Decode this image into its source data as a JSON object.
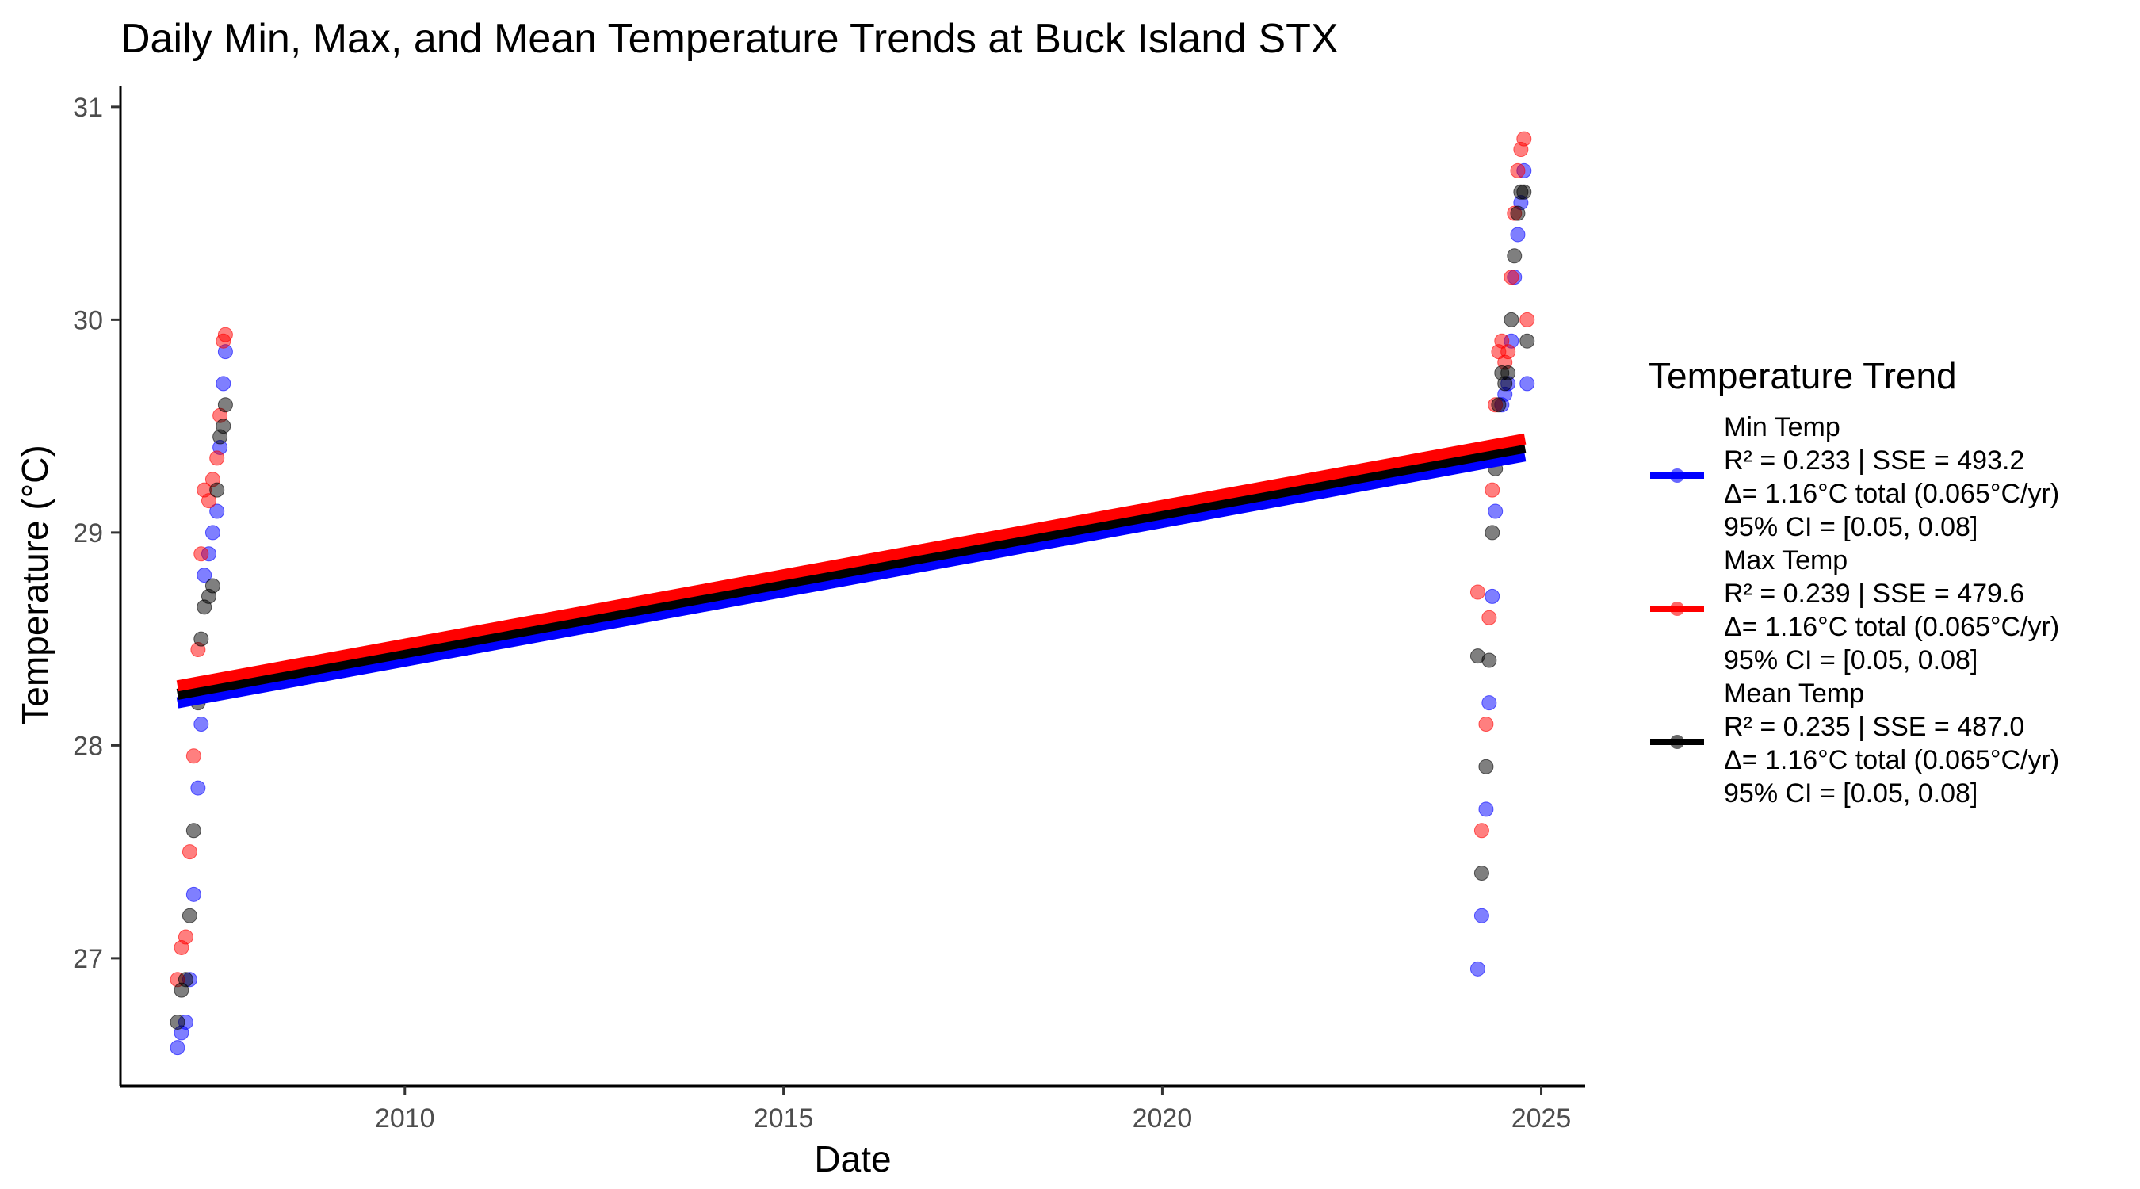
{
  "chart_data": {
    "type": "scatter",
    "title": "Daily Min, Max, and Mean Temperature Trends at Buck Island STX",
    "xlabel": "Date",
    "ylabel": "Temperature (°C)",
    "x_ticks": [
      "2010",
      "2015",
      "2020",
      "2025"
    ],
    "y_ticks": [
      "27",
      "28",
      "29",
      "30",
      "31"
    ],
    "xlim": [
      "2006-04-01",
      "2025-08-01"
    ],
    "ylim": [
      26.4,
      31.1
    ],
    "grid": false,
    "legend": {
      "title": "Temperature Trend",
      "position": "right",
      "entries": [
        {
          "lines": [
            "Min Temp",
            "R² = 0.233 | SSE = 493.2",
            "Δ= 1.16°C total (0.065°C/yr)",
            "95% CI = [0.05, 0.08]"
          ],
          "color": "#0000ff"
        },
        {
          "lines": [
            "Max Temp",
            "R² = 0.239 | SSE = 479.6",
            "Δ= 1.16°C total (0.065°C/yr)",
            "95% CI = [0.05, 0.08]"
          ],
          "color": "#ff0000"
        },
        {
          "lines": [
            "Mean Temp",
            "R² = 0.235 | SSE = 487.0",
            "Δ= 1.16°C total (0.065°C/yr)",
            "95% CI = [0.05, 0.08]"
          ],
          "color": "#000000"
        }
      ]
    },
    "series": [
      {
        "name": "Min Temp",
        "color": "#0000ff",
        "trend": {
          "x": [
            "2007-01-01",
            "2024-10-15"
          ],
          "y": [
            28.2,
            29.36
          ]
        },
        "points": {
          "x": [
            "2007-01-01",
            "2007-01-20",
            "2007-02-10",
            "2007-03-01",
            "2007-03-20",
            "2007-04-10",
            "2007-04-25",
            "2007-05-10",
            "2007-06-01",
            "2007-06-20",
            "2007-07-10",
            "2007-07-25",
            "2007-08-10",
            "2007-08-20",
            "2024-03-01",
            "2024-03-20",
            "2024-04-10",
            "2024-04-25",
            "2024-05-10",
            "2024-05-25",
            "2024-06-10",
            "2024-06-25",
            "2024-07-10",
            "2024-07-25",
            "2024-08-10",
            "2024-08-25",
            "2024-09-10",
            "2024-09-25",
            "2024-10-10",
            "2024-10-25"
          ],
          "y": [
            26.58,
            26.65,
            26.7,
            26.9,
            27.3,
            27.8,
            28.1,
            28.8,
            28.9,
            29.0,
            29.1,
            29.4,
            29.7,
            29.85,
            26.95,
            27.2,
            27.7,
            28.2,
            28.7,
            29.1,
            29.4,
            29.6,
            29.65,
            29.7,
            29.9,
            30.2,
            30.4,
            30.55,
            30.7,
            29.7
          ]
        }
      },
      {
        "name": "Max Temp",
        "color": "#ff0000",
        "trend": {
          "x": [
            "2007-01-01",
            "2024-10-15"
          ],
          "y": [
            28.28,
            29.44
          ]
        },
        "points": {
          "x": [
            "2007-01-01",
            "2007-01-20",
            "2007-02-10",
            "2007-03-01",
            "2007-03-20",
            "2007-04-10",
            "2007-04-25",
            "2007-05-10",
            "2007-06-01",
            "2007-06-20",
            "2007-07-10",
            "2007-07-25",
            "2007-08-10",
            "2007-08-20",
            "2024-03-01",
            "2024-03-20",
            "2024-04-10",
            "2024-04-25",
            "2024-05-10",
            "2024-05-25",
            "2024-06-10",
            "2024-06-25",
            "2024-07-10",
            "2024-07-25",
            "2024-08-10",
            "2024-08-25",
            "2024-09-10",
            "2024-09-25",
            "2024-10-10",
            "2024-10-25"
          ],
          "y": [
            26.9,
            27.05,
            27.1,
            27.5,
            27.95,
            28.45,
            28.9,
            29.2,
            29.15,
            29.25,
            29.35,
            29.55,
            29.9,
            29.93,
            28.72,
            27.6,
            28.1,
            28.6,
            29.2,
            29.6,
            29.85,
            29.9,
            29.8,
            29.85,
            30.2,
            30.5,
            30.7,
            30.8,
            30.85,
            30.0
          ]
        }
      },
      {
        "name": "Mean Temp",
        "color": "#000000",
        "trend": {
          "x": [
            "2007-01-01",
            "2024-10-15"
          ],
          "y": [
            28.24,
            29.4
          ]
        },
        "points": {
          "x": [
            "2007-01-01",
            "2007-01-20",
            "2007-02-10",
            "2007-03-01",
            "2007-03-20",
            "2007-04-10",
            "2007-04-25",
            "2007-05-10",
            "2007-06-01",
            "2007-06-20",
            "2007-07-10",
            "2007-07-25",
            "2007-08-10",
            "2007-08-20",
            "2024-03-01",
            "2024-03-20",
            "2024-04-10",
            "2024-04-25",
            "2024-05-10",
            "2024-05-25",
            "2024-06-10",
            "2024-06-25",
            "2024-07-10",
            "2024-07-25",
            "2024-08-10",
            "2024-08-25",
            "2024-09-10",
            "2024-09-25",
            "2024-10-10",
            "2024-10-25"
          ],
          "y": [
            26.7,
            26.85,
            26.9,
            27.2,
            27.6,
            28.2,
            28.5,
            28.65,
            28.7,
            28.75,
            29.2,
            29.45,
            29.5,
            29.6,
            28.42,
            27.4,
            27.9,
            28.4,
            29.0,
            29.3,
            29.6,
            29.75,
            29.7,
            29.75,
            30.0,
            30.3,
            30.5,
            30.6,
            30.6,
            29.9
          ]
        }
      }
    ]
  }
}
